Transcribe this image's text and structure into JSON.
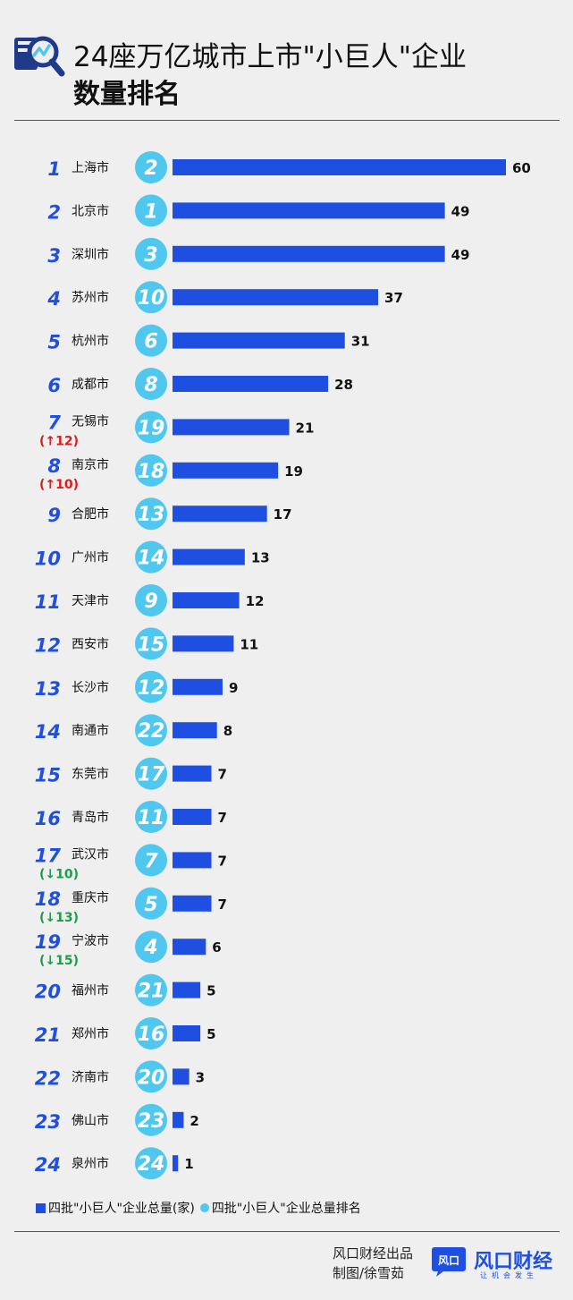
{
  "header": {
    "title_line1": "24座万亿城市上市\"小巨人\"企业",
    "title_line2": "数量排名",
    "icon": "magnifier-chart-icon"
  },
  "chart_data": {
    "type": "bar",
    "orientation": "horizontal",
    "ranks": [
      "1",
      "2",
      "3",
      "4",
      "5",
      "6",
      "7",
      "8",
      "9",
      "10",
      "11",
      "12",
      "13",
      "14",
      "15",
      "16",
      "17",
      "18",
      "19",
      "20",
      "21",
      "22",
      "23",
      "24"
    ],
    "categories": [
      "上海市",
      "北京市",
      "深圳市",
      "苏州市",
      "杭州市",
      "成都市",
      "无锡市",
      "南京市",
      "合肥市",
      "广州市",
      "天津市",
      "西安市",
      "长沙市",
      "南通市",
      "东莞市",
      "青岛市",
      "武汉市",
      "重庆市",
      "宁波市",
      "福州市",
      "郑州市",
      "济南市",
      "佛山市",
      "泉州市"
    ],
    "rank_changes": [
      "",
      "",
      "",
      "",
      "",
      "",
      "(↑12)",
      "(↑10)",
      "",
      "",
      "",
      "",
      "",
      "",
      "",
      "",
      "(↓10)",
      "(↓13)",
      "(↓15)",
      "",
      "",
      "",
      "",
      ""
    ],
    "series": [
      {
        "name": "四批\"小巨人\"企业总量(家)",
        "values": [
          60,
          49,
          49,
          37,
          31,
          28,
          21,
          19,
          17,
          13,
          12,
          11,
          9,
          8,
          7,
          7,
          7,
          7,
          6,
          5,
          5,
          3,
          2,
          1
        ],
        "color": "#1f4fe0"
      },
      {
        "name": "四批\"小巨人\"企业总量排名",
        "values": [
          2,
          1,
          3,
          10,
          6,
          8,
          19,
          18,
          13,
          14,
          9,
          15,
          12,
          22,
          17,
          11,
          7,
          5,
          4,
          21,
          16,
          20,
          23,
          24
        ],
        "color": "#4fc7ef"
      }
    ],
    "colors": {
      "up": "#d81e1e",
      "down": "#1d9a4a",
      "rank_text": "#1f4fe0"
    }
  },
  "legend": {
    "bar_label": "四批\"小巨人\"企业总量(家)",
    "dot_label": "四批\"小巨人\"企业总量排名"
  },
  "footer": {
    "credit_line1": "风口财经出品",
    "credit_line2": "制图/徐雪茹",
    "brand_name": "风口财经",
    "brand_sub": "让机会发生",
    "brand_logo_text": "风口"
  }
}
